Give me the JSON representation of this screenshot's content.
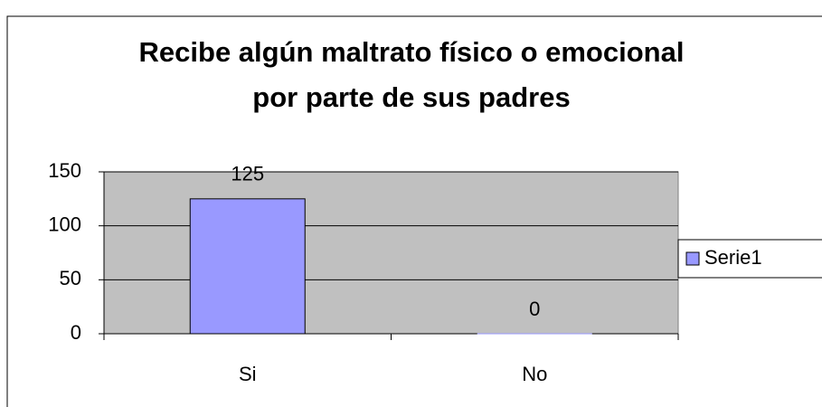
{
  "chart_data": {
    "type": "bar",
    "title": "Recibe algún maltrato físico o emocional por parte de sus padres",
    "categories": [
      "Si",
      "No"
    ],
    "series": [
      {
        "name": "Serie1",
        "color": "#9999ff",
        "values": [
          125,
          0
        ]
      }
    ],
    "ylim": [
      0,
      150
    ],
    "yticks": [
      0,
      50,
      100,
      150
    ],
    "grid": true,
    "legend": "right",
    "plot_background": "#c0c0c0"
  }
}
